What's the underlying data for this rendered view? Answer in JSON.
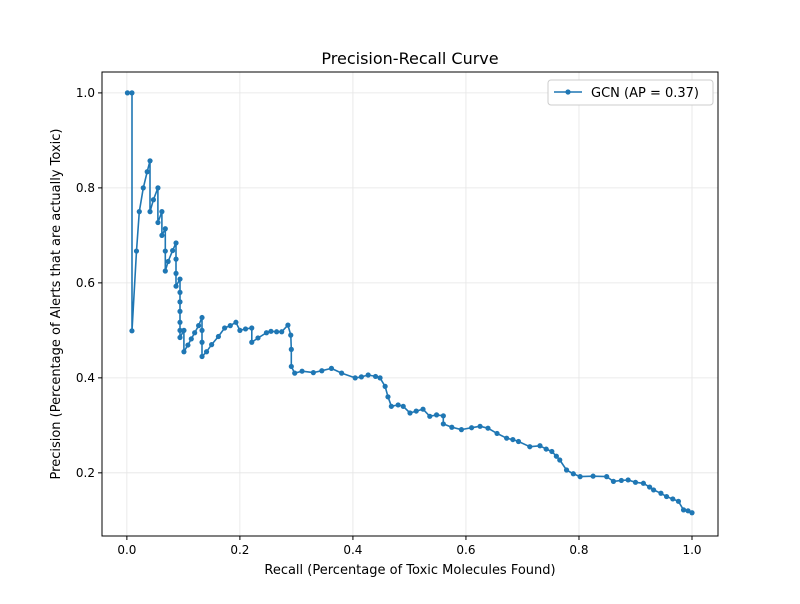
{
  "chart_data": {
    "type": "line",
    "title": "Precision-Recall Curve",
    "xlabel": "Recall (Percentage of Toxic Molecules Found)",
    "ylabel": "Precision (Percentage of Alerts that are actually Toxic)",
    "xlim": [
      -0.044,
      1.046
    ],
    "ylim": [
      0.067,
      1.044
    ],
    "xticks": [
      "0.0",
      "0.2",
      "0.4",
      "0.6",
      "0.8",
      "1.0"
    ],
    "yticks": [
      "0.2",
      "0.4",
      "0.6",
      "0.8",
      "1.0"
    ],
    "grid": true,
    "legend_position": "top-right",
    "series": [
      {
        "name": "GCN (AP = 0.37)",
        "color": "#1f77b4",
        "marker": "circle",
        "points": [
          [
            0.001,
            1.0
          ],
          [
            0.009,
            1.0
          ],
          [
            0.009,
            0.499
          ],
          [
            0.017,
            0.667
          ],
          [
            0.022,
            0.75
          ],
          [
            0.029,
            0.8
          ],
          [
            0.036,
            0.834
          ],
          [
            0.041,
            0.857
          ],
          [
            0.041,
            0.75
          ],
          [
            0.047,
            0.775
          ],
          [
            0.055,
            0.8
          ],
          [
            0.055,
            0.727
          ],
          [
            0.062,
            0.75
          ],
          [
            0.062,
            0.7
          ],
          [
            0.068,
            0.714
          ],
          [
            0.068,
            0.667
          ],
          [
            0.068,
            0.625
          ],
          [
            0.073,
            0.645
          ],
          [
            0.081,
            0.668
          ],
          [
            0.087,
            0.684
          ],
          [
            0.087,
            0.65
          ],
          [
            0.087,
            0.62
          ],
          [
            0.087,
            0.593
          ],
          [
            0.094,
            0.608
          ],
          [
            0.094,
            0.58
          ],
          [
            0.094,
            0.56
          ],
          [
            0.094,
            0.54
          ],
          [
            0.094,
            0.517
          ],
          [
            0.094,
            0.5
          ],
          [
            0.094,
            0.485
          ],
          [
            0.101,
            0.5
          ],
          [
            0.101,
            0.455
          ],
          [
            0.108,
            0.469
          ],
          [
            0.114,
            0.482
          ],
          [
            0.12,
            0.495
          ],
          [
            0.127,
            0.51
          ],
          [
            0.133,
            0.527
          ],
          [
            0.133,
            0.5
          ],
          [
            0.133,
            0.475
          ],
          [
            0.133,
            0.445
          ],
          [
            0.141,
            0.455
          ],
          [
            0.15,
            0.47
          ],
          [
            0.162,
            0.487
          ],
          [
            0.173,
            0.505
          ],
          [
            0.183,
            0.51
          ],
          [
            0.193,
            0.517
          ],
          [
            0.2,
            0.5
          ],
          [
            0.21,
            0.503
          ],
          [
            0.221,
            0.505
          ],
          [
            0.221,
            0.475
          ],
          [
            0.232,
            0.484
          ],
          [
            0.247,
            0.495
          ],
          [
            0.255,
            0.498
          ],
          [
            0.265,
            0.497
          ],
          [
            0.274,
            0.497
          ],
          [
            0.285,
            0.511
          ],
          [
            0.29,
            0.49
          ],
          [
            0.291,
            0.46
          ],
          [
            0.291,
            0.424
          ],
          [
            0.297,
            0.41
          ],
          [
            0.31,
            0.414
          ],
          [
            0.33,
            0.411
          ],
          [
            0.345,
            0.415
          ],
          [
            0.362,
            0.42
          ],
          [
            0.38,
            0.41
          ],
          [
            0.404,
            0.4
          ],
          [
            0.415,
            0.402
          ],
          [
            0.427,
            0.406
          ],
          [
            0.44,
            0.403
          ],
          [
            0.448,
            0.4
          ],
          [
            0.457,
            0.382
          ],
          [
            0.462,
            0.36
          ],
          [
            0.468,
            0.34
          ],
          [
            0.48,
            0.343
          ],
          [
            0.489,
            0.34
          ],
          [
            0.501,
            0.326
          ],
          [
            0.512,
            0.33
          ],
          [
            0.524,
            0.334
          ],
          [
            0.536,
            0.319
          ],
          [
            0.548,
            0.322
          ],
          [
            0.56,
            0.32
          ],
          [
            0.56,
            0.303
          ],
          [
            0.575,
            0.296
          ],
          [
            0.592,
            0.291
          ],
          [
            0.61,
            0.295
          ],
          [
            0.625,
            0.298
          ],
          [
            0.639,
            0.294
          ],
          [
            0.655,
            0.283
          ],
          [
            0.672,
            0.273
          ],
          [
            0.683,
            0.27
          ],
          [
            0.693,
            0.266
          ],
          [
            0.713,
            0.255
          ],
          [
            0.731,
            0.257
          ],
          [
            0.742,
            0.25
          ],
          [
            0.752,
            0.245
          ],
          [
            0.76,
            0.235
          ],
          [
            0.766,
            0.227
          ],
          [
            0.778,
            0.206
          ],
          [
            0.79,
            0.198
          ],
          [
            0.802,
            0.192
          ],
          [
            0.825,
            0.193
          ],
          [
            0.849,
            0.192
          ],
          [
            0.861,
            0.182
          ],
          [
            0.875,
            0.184
          ],
          [
            0.887,
            0.185
          ],
          [
            0.9,
            0.18
          ],
          [
            0.914,
            0.178
          ],
          [
            0.925,
            0.17
          ],
          [
            0.932,
            0.164
          ],
          [
            0.945,
            0.157
          ],
          [
            0.955,
            0.15
          ],
          [
            0.966,
            0.145
          ],
          [
            0.976,
            0.14
          ],
          [
            0.985,
            0.122
          ],
          [
            0.993,
            0.12
          ],
          [
            1.0,
            0.116
          ]
        ]
      }
    ]
  }
}
